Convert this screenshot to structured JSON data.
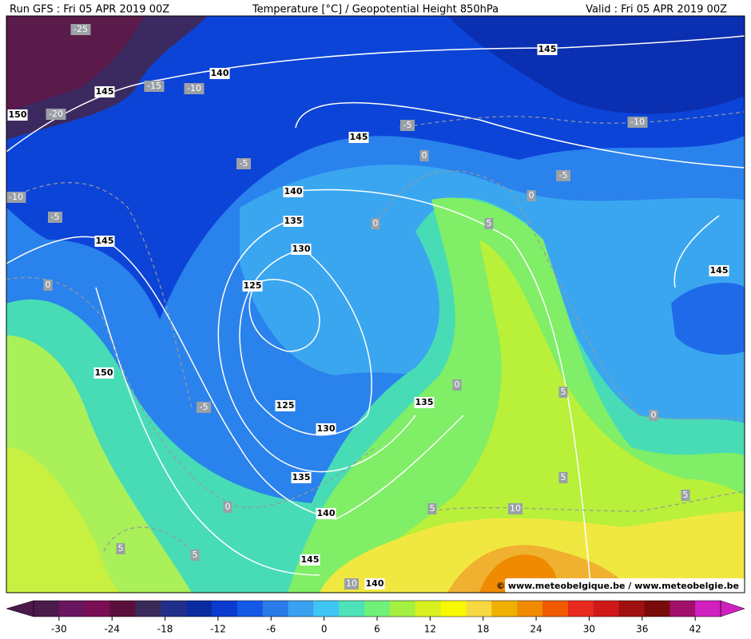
{
  "header": {
    "left": "Run GFS : Fri 05 APR 2019 00Z",
    "center": "Temperature [°C] / Geopotential Height 850hPa",
    "right": "Valid : Fri 05 APR 2019 00Z"
  },
  "height_labels": [
    145,
    140,
    145,
    145,
    140,
    135,
    130,
    125,
    145,
    150,
    125,
    130,
    135,
    135,
    140,
    145,
    140,
    145,
    150
  ],
  "temperature_labels": [
    -25,
    -15,
    -10,
    -20,
    -10,
    -5,
    -5,
    -5,
    0,
    -10,
    -5,
    0,
    0,
    5,
    0,
    -5,
    0,
    5,
    0,
    5,
    5,
    10,
    5,
    0,
    5,
    5,
    10
  ],
  "credit": "© www.meteobelgique.be / www.meteobelgie.be",
  "colorbar": {
    "ticks": [
      -30,
      -24,
      -18,
      -12,
      -6,
      0,
      6,
      12,
      18,
      24,
      30,
      36,
      42
    ],
    "colors": [
      "#4a1a4a",
      "#6a1560",
      "#7a0f55",
      "#5a0f3a",
      "#3a2a5a",
      "#20308a",
      "#0a2aa0",
      "#0a3ad0",
      "#1458e6",
      "#2a7ae8",
      "#3aa0f0",
      "#40c6f2",
      "#4ee2b8",
      "#70f07a",
      "#a4f040",
      "#d8f020",
      "#f8f800",
      "#f8d840",
      "#f0b000",
      "#f08a00",
      "#f05a00",
      "#e82a20",
      "#d01818",
      "#a01010",
      "#780a0a",
      "#a0106a",
      "#d020c0"
    ]
  }
}
